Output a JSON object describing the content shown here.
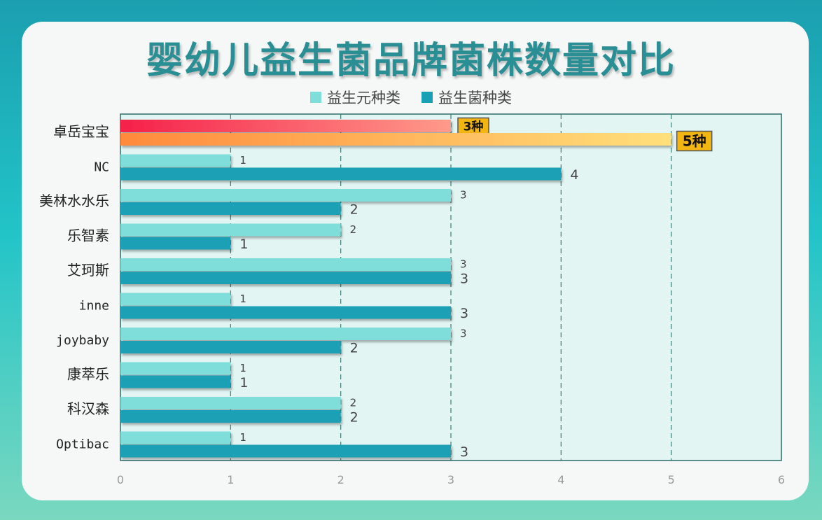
{
  "title": "婴幼儿益生菌品牌菌株数量对比",
  "legend": [
    {
      "label": "益生元种类",
      "color": "#7fded9"
    },
    {
      "label": "益生菌种类",
      "color": "#1aa0b5"
    }
  ],
  "chart_data": {
    "type": "bar",
    "orientation": "horizontal",
    "categories": [
      "卓岳宝宝",
      "NC",
      "美林水水乐",
      "乐智素",
      "艾珂斯",
      "inne",
      "joybaby",
      "康萃乐",
      "科汉森",
      "Optibac"
    ],
    "series": [
      {
        "name": "益生元种类",
        "values": [
          3,
          1,
          3,
          2,
          3,
          1,
          3,
          1,
          2,
          1
        ]
      },
      {
        "name": "益生菌种类",
        "values": [
          5,
          4,
          2,
          1,
          3,
          3,
          2,
          1,
          2,
          3
        ]
      }
    ],
    "highlight": {
      "category": "卓岳宝宝",
      "labels": [
        "3种",
        "5种"
      ]
    },
    "xlim": [
      0,
      6
    ],
    "xticks": [
      "0",
      "1",
      "2",
      "3",
      "4",
      "5",
      "6"
    ],
    "grid": "vertical dashed",
    "legend_position": "top"
  }
}
